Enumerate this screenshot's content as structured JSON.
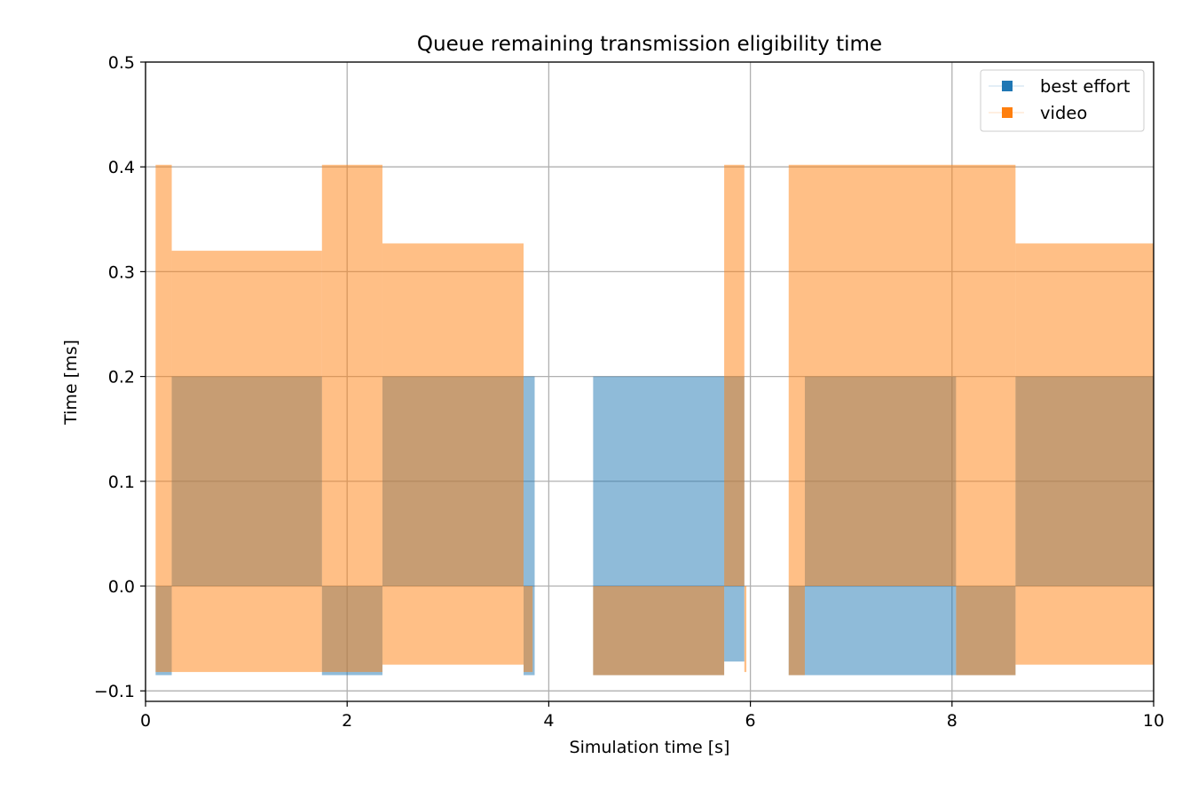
{
  "chart_data": {
    "type": "area",
    "title": "Queue remaining transmission eligibility time",
    "xlabel": "Simulation time [s]",
    "ylabel": "Time [ms]",
    "xlim": [
      0,
      10
    ],
    "ylim": [
      -0.11,
      0.5
    ],
    "xticks": [
      {
        "value": 0,
        "label": "0"
      },
      {
        "value": 2,
        "label": "2"
      },
      {
        "value": 4,
        "label": "4"
      },
      {
        "value": 6,
        "label": "6"
      },
      {
        "value": 8,
        "label": "8"
      },
      {
        "value": 10,
        "label": "10"
      }
    ],
    "yticks": [
      {
        "value": -0.1,
        "label": "−0.1"
      },
      {
        "value": 0.0,
        "label": "0.0"
      },
      {
        "value": 0.1,
        "label": "0.1"
      },
      {
        "value": 0.2,
        "label": "0.2"
      },
      {
        "value": 0.3,
        "label": "0.3"
      },
      {
        "value": 0.4,
        "label": "0.4"
      },
      {
        "value": 0.5,
        "label": "0.5"
      }
    ],
    "grid": true,
    "legend_position": "top-right",
    "series": [
      {
        "name": "best effort",
        "color": "#1f77b4",
        "opacity": 0.5,
        "bands": [
          {
            "x0": 0.1,
            "x1": 0.26,
            "ymax": 0.0,
            "ymin": -0.085
          },
          {
            "x0": 0.26,
            "x1": 1.75,
            "ymax": 0.2,
            "ymin": 0.0
          },
          {
            "x0": 1.75,
            "x1": 2.35,
            "ymax": 0.0,
            "ymin": -0.085
          },
          {
            "x0": 2.35,
            "x1": 3.75,
            "ymax": 0.2,
            "ymin": 0.0
          },
          {
            "x0": 3.75,
            "x1": 3.86,
            "ymax": 0.2,
            "ymin": -0.085
          },
          {
            "x0": 4.44,
            "x1": 5.74,
            "ymax": 0.2,
            "ymin": -0.085
          },
          {
            "x0": 5.74,
            "x1": 5.94,
            "ymax": 0.2,
            "ymin": -0.072
          },
          {
            "x0": 6.38,
            "x1": 6.54,
            "ymax": 0.0,
            "ymin": -0.085
          },
          {
            "x0": 6.54,
            "x1": 8.04,
            "ymax": 0.2,
            "ymin": -0.085
          },
          {
            "x0": 8.04,
            "x1": 8.63,
            "ymax": 0.0,
            "ymin": -0.085
          },
          {
            "x0": 8.63,
            "x1": 10.0,
            "ymax": 0.2,
            "ymin": 0.0
          }
        ]
      },
      {
        "name": "video",
        "color": "#ff7f0e",
        "opacity": 0.5,
        "bands": [
          {
            "x0": 0.1,
            "x1": 0.26,
            "ymax": 0.402,
            "ymin": -0.082
          },
          {
            "x0": 0.26,
            "x1": 1.75,
            "ymax": 0.32,
            "ymin": -0.082
          },
          {
            "x0": 1.75,
            "x1": 2.35,
            "ymax": 0.402,
            "ymin": -0.082
          },
          {
            "x0": 2.35,
            "x1": 3.75,
            "ymax": 0.327,
            "ymin": -0.075
          },
          {
            "x0": 3.75,
            "x1": 3.84,
            "ymax": 0.0,
            "ymin": -0.082
          },
          {
            "x0": 4.44,
            "x1": 5.74,
            "ymax": 0.0,
            "ymin": -0.085
          },
          {
            "x0": 5.74,
            "x1": 5.94,
            "ymax": 0.402,
            "ymin": 0.0
          },
          {
            "x0": 5.94,
            "x1": 5.96,
            "ymax": 0.0,
            "ymin": -0.082
          },
          {
            "x0": 6.38,
            "x1": 8.63,
            "ymax": 0.402,
            "ymin": 0.0
          },
          {
            "x0": 6.38,
            "x1": 6.54,
            "ymax": 0.0,
            "ymin": -0.085
          },
          {
            "x0": 8.04,
            "x1": 8.63,
            "ymax": 0.0,
            "ymin": -0.085
          },
          {
            "x0": 8.63,
            "x1": 10.0,
            "ymax": 0.327,
            "ymin": -0.075
          }
        ]
      }
    ]
  }
}
